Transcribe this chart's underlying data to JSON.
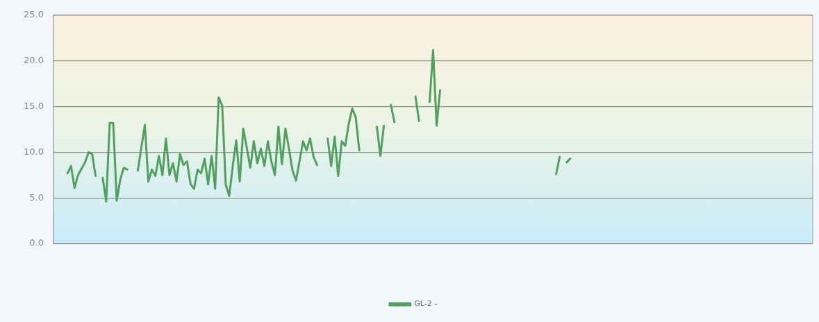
{
  "chart_data": {
    "type": "line",
    "categories": [
      null,
      null,
      null,
      null,
      null,
      null,
      null,
      null,
      null,
      null,
      null,
      null,
      null,
      null,
      null,
      null,
      null,
      null,
      null,
      null,
      null,
      null,
      null,
      null,
      null,
      null,
      null,
      null,
      null,
      null,
      null,
      null,
      null,
      null,
      null,
      null,
      null,
      null,
      null,
      null,
      null,
      null,
      null,
      null,
      null,
      null,
      null,
      null,
      null,
      null,
      null,
      null,
      null,
      null,
      null,
      null,
      null,
      null,
      null,
      null,
      null,
      null,
      null,
      null,
      null,
      null,
      null,
      null,
      null,
      null,
      null,
      null,
      null,
      null,
      null,
      null,
      null,
      null,
      null,
      null,
      null,
      null,
      null,
      null,
      null,
      null,
      null,
      null,
      null,
      null,
      null,
      null,
      null,
      null,
      null,
      null,
      null,
      null,
      null,
      null,
      null,
      null,
      null,
      null,
      null,
      null,
      null,
      null,
      null,
      null,
      null,
      null,
      null,
      null,
      null,
      null,
      null,
      null,
      null,
      null,
      null,
      null,
      null,
      null,
      null,
      null,
      null,
      null,
      null,
      null,
      null,
      null,
      null,
      null,
      null,
      null,
      null,
      null,
      null,
      null,
      null,
      null,
      null,
      null,
      null,
      null,
      null,
      null,
      null,
      null,
      null,
      null,
      null,
      null,
      null,
      null,
      null,
      null,
      null,
      null,
      null,
      null,
      null,
      null,
      null,
      null,
      null,
      null,
      null,
      null,
      null,
      null,
      null,
      null,
      null,
      null,
      null,
      null,
      null,
      null,
      null,
      null,
      null,
      null,
      null,
      null,
      null,
      null,
      null,
      null,
      null,
      null,
      null,
      null,
      null,
      null,
      null,
      null,
      null,
      null,
      null,
      null,
      null,
      null,
      null,
      null,
      null,
      null,
      null,
      null,
      null,
      null,
      null,
      null,
      null,
      null,
      null
    ],
    "series": [
      {
        "name": "GL-2 -",
        "color": "#52a060",
        "values": [
          null,
          null,
          null,
          null,
          7.7,
          8.5,
          6.1,
          7.5,
          8.2,
          8.9,
          10.0,
          9.8,
          7.4,
          null,
          7.2,
          4.6,
          13.2,
          13.2,
          4.7,
          7.0,
          8.3,
          8.1,
          null,
          null,
          8.0,
          10.5,
          13.0,
          6.8,
          8.1,
          7.4,
          9.6,
          7.5,
          11.5,
          7.5,
          8.8,
          6.8,
          9.8,
          8.6,
          9.0,
          6.5,
          6.0,
          8.1,
          7.7,
          9.3,
          6.5,
          9.6,
          6.0,
          16.0,
          15.1,
          6.5,
          5.2,
          8.5,
          11.3,
          6.8,
          12.6,
          10.5,
          8.3,
          11.2,
          8.8,
          10.4,
          8.5,
          11.2,
          9.0,
          7.5,
          12.8,
          8.7,
          12.6,
          10.4,
          8.0,
          6.9,
          9.0,
          11.2,
          10.2,
          11.5,
          9.5,
          8.6,
          null,
          null,
          11.5,
          8.5,
          11.7,
          7.4,
          11.2,
          10.7,
          13.1,
          14.8,
          13.8,
          10.2,
          null,
          null,
          null,
          null,
          12.8,
          9.6,
          12.9,
          null,
          15.2,
          13.3,
          null,
          null,
          null,
          null,
          null,
          16.1,
          13.4,
          null,
          null,
          15.5,
          21.2,
          12.9,
          16.8,
          null,
          null,
          null,
          null,
          null,
          null,
          null,
          null,
          null,
          null,
          null,
          null,
          null,
          null,
          null,
          null,
          null,
          null,
          null,
          null,
          null,
          null,
          null,
          null,
          null,
          null,
          null,
          null,
          null,
          null,
          null,
          null,
          7.6,
          9.5,
          null,
          8.9,
          9.3,
          null,
          null,
          null,
          null,
          null,
          null,
          null,
          null,
          null,
          null,
          null,
          null,
          null,
          null,
          null,
          null,
          null,
          null,
          null,
          null,
          null,
          null,
          null,
          null,
          null,
          null,
          null,
          null,
          null,
          null,
          null,
          null,
          null,
          null,
          null,
          null,
          null,
          null,
          null,
          null,
          null,
          null,
          null,
          null,
          null,
          null,
          null,
          null,
          null,
          null,
          null,
          null,
          null,
          null,
          null,
          null,
          null,
          null,
          null,
          null,
          null,
          null,
          null,
          null,
          null,
          null,
          null,
          null,
          null
        ]
      }
    ],
    "ylim": [
      0,
      25
    ],
    "yticks": [
      {
        "value": 0,
        "label": "0.0"
      },
      {
        "value": 5,
        "label": "5.0"
      },
      {
        "value": 10,
        "label": "10.0"
      },
      {
        "value": 15,
        "label": "15.0"
      },
      {
        "value": 20,
        "label": "20.0"
      },
      {
        "value": 25,
        "label": "25.0"
      }
    ],
    "grid": "y",
    "legend": "bottom",
    "tick_labels": "y",
    "marker": "none",
    "line_style": "solid"
  }
}
